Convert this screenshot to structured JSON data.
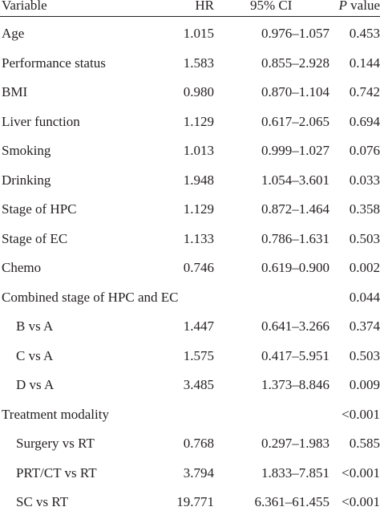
{
  "table": {
    "header": [
      "Variable",
      "HR",
      "95% CI",
      "P value"
    ],
    "rows": [
      {
        "variable": "Age",
        "hr": "1.015",
        "ci": "0.976–1.057",
        "p": "0.453"
      },
      {
        "variable": "Performance status",
        "hr": "1.583",
        "ci": "0.855–2.928",
        "p": "0.144"
      },
      {
        "variable": "BMI",
        "hr": "0.980",
        "ci": "0.870–1.104",
        "p": "0.742"
      },
      {
        "variable": "Liver function",
        "hr": "1.129",
        "ci": "0.617–2.065",
        "p": "0.694"
      },
      {
        "variable": "Smoking",
        "hr": "1.013",
        "ci": "0.999–1.027",
        "p": "0.076"
      },
      {
        "variable": "Drinking",
        "hr": "1.948",
        "ci": "1.054–3.601",
        "p": "0.033"
      },
      {
        "variable": "Stage of HPC",
        "hr": "1.129",
        "ci": "0.872–1.464",
        "p": "0.358"
      },
      {
        "variable": "Stage of EC",
        "hr": "1.133",
        "ci": "0.786–1.631",
        "p": "0.503"
      },
      {
        "variable": "Chemo",
        "hr": "0.746",
        "ci": "0.619–0.900",
        "p": "0.002"
      },
      {
        "variable": "Combined stage of HPC and EC",
        "p": "0.044"
      },
      {
        "variable": "B vs A",
        "hr": "1.447",
        "ci": "0.641–3.266",
        "p": "0.374",
        "level": 1
      },
      {
        "variable": "C vs A",
        "hr": "1.575",
        "ci": "0.417–5.951",
        "p": "0.503",
        "level": 1
      },
      {
        "variable": "D vs A",
        "hr": "3.485",
        "ci": "1.373–8.846",
        "p": "0.009",
        "level": 1
      },
      {
        "variable": "Treatment modality",
        "p": "<0.001"
      },
      {
        "variable": "Surgery vs RT",
        "hr": "0.768",
        "ci": "0.297–1.983",
        "p": "0.585",
        "level": 1
      },
      {
        "variable": "PRT/CT vs RT",
        "hr": "3.794",
        "ci": "1.833–7.851",
        "p": "<0.001",
        "level": 1
      },
      {
        "variable": "SC vs RT",
        "hr": "19.771",
        "ci": "6.361–61.455",
        "p": "<0.001",
        "level": 1
      }
    ]
  }
}
